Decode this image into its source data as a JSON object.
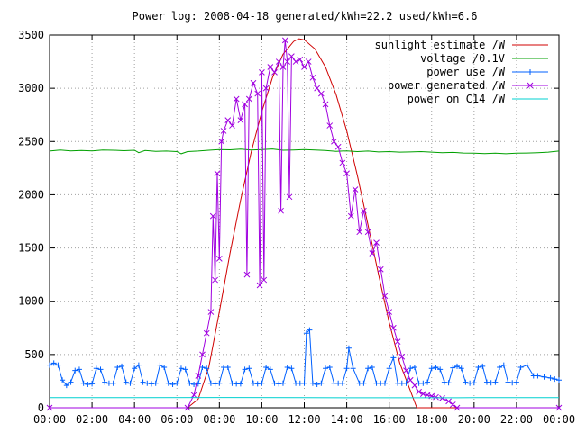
{
  "chart_data": {
    "type": "line",
    "title": "Power log: 2008-04-18 generated/kWh=22.2 used/kWh=6.6",
    "xlabel": "",
    "ylabel": "",
    "x_ticks": [
      "00:00",
      "02:00",
      "04:00",
      "06:00",
      "08:00",
      "10:00",
      "12:00",
      "14:00",
      "16:00",
      "18:00",
      "20:00",
      "22:00",
      "00:00"
    ],
    "xlim_hours": [
      0,
      24
    ],
    "ylim": [
      0,
      3500
    ],
    "y_ticks": [
      0,
      500,
      1000,
      1500,
      2000,
      2500,
      3000,
      3500
    ],
    "grid": true,
    "legend_position": "top-right",
    "series": [
      {
        "name": "sunlight estimate /W",
        "color": "#d00000",
        "style": "line",
        "points": [
          [
            0,
            0
          ],
          [
            6.5,
            0
          ],
          [
            7,
            80
          ],
          [
            7.5,
            380
          ],
          [
            8,
            900
          ],
          [
            8.5,
            1450
          ],
          [
            9,
            1950
          ],
          [
            9.5,
            2400
          ],
          [
            10,
            2780
          ],
          [
            10.5,
            3100
          ],
          [
            11,
            3320
          ],
          [
            11.5,
            3440
          ],
          [
            11.75,
            3465
          ],
          [
            12,
            3455
          ],
          [
            12.5,
            3370
          ],
          [
            13,
            3200
          ],
          [
            13.5,
            2940
          ],
          [
            14,
            2600
          ],
          [
            14.5,
            2180
          ],
          [
            15,
            1720
          ],
          [
            15.5,
            1250
          ],
          [
            16,
            800
          ],
          [
            16.5,
            420
          ],
          [
            17,
            160
          ],
          [
            17.3,
            0
          ],
          [
            24,
            0
          ]
        ]
      },
      {
        "name": "voltage /0.1V",
        "color": "#00a000",
        "style": "line",
        "points": [
          [
            0,
            2410
          ],
          [
            0.5,
            2420
          ],
          [
            1,
            2412
          ],
          [
            1.5,
            2416
          ],
          [
            2,
            2412
          ],
          [
            2.5,
            2420
          ],
          [
            3,
            2418
          ],
          [
            3.5,
            2414
          ],
          [
            4,
            2418
          ],
          [
            4.2,
            2395
          ],
          [
            4.5,
            2415
          ],
          [
            5,
            2408
          ],
          [
            5.5,
            2410
          ],
          [
            6,
            2405
          ],
          [
            6.2,
            2385
          ],
          [
            6.5,
            2405
          ],
          [
            7,
            2410
          ],
          [
            7.5,
            2418
          ],
          [
            8,
            2425
          ],
          [
            8.5,
            2422
          ],
          [
            9,
            2428
          ],
          [
            9.5,
            2420
          ],
          [
            10,
            2425
          ],
          [
            10.5,
            2430
          ],
          [
            11,
            2418
          ],
          [
            11.5,
            2420
          ],
          [
            12,
            2425
          ],
          [
            12.5,
            2420
          ],
          [
            13,
            2415
          ],
          [
            13.5,
            2408
          ],
          [
            14,
            2412
          ],
          [
            14.5,
            2405
          ],
          [
            15,
            2410
          ],
          [
            15.5,
            2402
          ],
          [
            16,
            2405
          ],
          [
            16.5,
            2400
          ],
          [
            17,
            2402
          ],
          [
            17.5,
            2405
          ],
          [
            18,
            2400
          ],
          [
            18.5,
            2395
          ],
          [
            19,
            2398
          ],
          [
            19.5,
            2392
          ],
          [
            20,
            2390
          ],
          [
            20.5,
            2386
          ],
          [
            21,
            2390
          ],
          [
            21.5,
            2385
          ],
          [
            22,
            2390
          ],
          [
            22.5,
            2392
          ],
          [
            23,
            2395
          ],
          [
            23.5,
            2400
          ],
          [
            24,
            2410
          ]
        ]
      },
      {
        "name": "power use /W",
        "color": "#0060ff",
        "style": "plus",
        "points": [
          [
            0,
            400
          ],
          [
            0.2,
            420
          ],
          [
            0.4,
            400
          ],
          [
            0.6,
            260
          ],
          [
            0.8,
            210
          ],
          [
            1,
            240
          ],
          [
            1.2,
            350
          ],
          [
            1.4,
            360
          ],
          [
            1.6,
            230
          ],
          [
            1.8,
            220
          ],
          [
            2,
            225
          ],
          [
            2.2,
            370
          ],
          [
            2.4,
            360
          ],
          [
            2.6,
            240
          ],
          [
            2.8,
            230
          ],
          [
            3,
            230
          ],
          [
            3.2,
            380
          ],
          [
            3.4,
            390
          ],
          [
            3.6,
            240
          ],
          [
            3.8,
            230
          ],
          [
            4,
            370
          ],
          [
            4.2,
            400
          ],
          [
            4.4,
            240
          ],
          [
            4.6,
            230
          ],
          [
            4.8,
            225
          ],
          [
            5,
            230
          ],
          [
            5.2,
            400
          ],
          [
            5.4,
            380
          ],
          [
            5.6,
            230
          ],
          [
            5.8,
            220
          ],
          [
            6,
            230
          ],
          [
            6.2,
            370
          ],
          [
            6.4,
            360
          ],
          [
            6.6,
            230
          ],
          [
            6.8,
            220
          ],
          [
            7,
            225
          ],
          [
            7.2,
            380
          ],
          [
            7.4,
            370
          ],
          [
            7.6,
            230
          ],
          [
            7.8,
            225
          ],
          [
            8,
            230
          ],
          [
            8.2,
            380
          ],
          [
            8.4,
            380
          ],
          [
            8.6,
            230
          ],
          [
            8.8,
            225
          ],
          [
            9,
            225
          ],
          [
            9.2,
            360
          ],
          [
            9.4,
            370
          ],
          [
            9.6,
            230
          ],
          [
            9.8,
            225
          ],
          [
            10,
            230
          ],
          [
            10.2,
            380
          ],
          [
            10.4,
            360
          ],
          [
            10.6,
            230
          ],
          [
            10.8,
            225
          ],
          [
            11,
            230
          ],
          [
            11.2,
            380
          ],
          [
            11.4,
            370
          ],
          [
            11.6,
            230
          ],
          [
            11.8,
            230
          ],
          [
            12,
            230
          ],
          [
            12.1,
            700
          ],
          [
            12.25,
            730
          ],
          [
            12.4,
            230
          ],
          [
            12.6,
            220
          ],
          [
            12.8,
            230
          ],
          [
            13,
            370
          ],
          [
            13.2,
            380
          ],
          [
            13.4,
            230
          ],
          [
            13.6,
            230
          ],
          [
            13.8,
            230
          ],
          [
            14,
            370
          ],
          [
            14.1,
            560
          ],
          [
            14.3,
            370
          ],
          [
            14.6,
            230
          ],
          [
            14.8,
            230
          ],
          [
            15,
            370
          ],
          [
            15.2,
            380
          ],
          [
            15.4,
            230
          ],
          [
            15.6,
            230
          ],
          [
            15.8,
            230
          ],
          [
            16,
            370
          ],
          [
            16.2,
            470
          ],
          [
            16.4,
            230
          ],
          [
            16.6,
            230
          ],
          [
            16.8,
            230
          ],
          [
            17,
            370
          ],
          [
            17.2,
            380
          ],
          [
            17.4,
            230
          ],
          [
            17.6,
            230
          ],
          [
            17.8,
            240
          ],
          [
            18,
            370
          ],
          [
            18.2,
            380
          ],
          [
            18.4,
            360
          ],
          [
            18.6,
            240
          ],
          [
            18.8,
            235
          ],
          [
            19,
            375
          ],
          [
            19.2,
            390
          ],
          [
            19.4,
            370
          ],
          [
            19.6,
            240
          ],
          [
            19.8,
            230
          ],
          [
            20,
            235
          ],
          [
            20.2,
            380
          ],
          [
            20.4,
            390
          ],
          [
            20.6,
            240
          ],
          [
            20.8,
            235
          ],
          [
            21,
            240
          ],
          [
            21.2,
            380
          ],
          [
            21.4,
            400
          ],
          [
            21.6,
            240
          ],
          [
            21.8,
            235
          ],
          [
            22,
            240
          ],
          [
            22.2,
            380
          ],
          [
            22.5,
            400
          ],
          [
            22.8,
            300
          ],
          [
            23,
            300
          ],
          [
            23.3,
            290
          ],
          [
            23.6,
            280
          ],
          [
            23.8,
            270
          ],
          [
            24,
            260
          ]
        ]
      },
      {
        "name": "power generated /W",
        "color": "#a000e0",
        "style": "cross",
        "points": [
          [
            0,
            0
          ],
          [
            6.5,
            0
          ],
          [
            6.8,
            120
          ],
          [
            7,
            300
          ],
          [
            7.2,
            500
          ],
          [
            7.4,
            700
          ],
          [
            7.6,
            900
          ],
          [
            7.7,
            1800
          ],
          [
            7.8,
            1200
          ],
          [
            7.9,
            2200
          ],
          [
            8,
            1400
          ],
          [
            8.1,
            2500
          ],
          [
            8.2,
            2600
          ],
          [
            8.4,
            2700
          ],
          [
            8.6,
            2650
          ],
          [
            8.8,
            2900
          ],
          [
            9,
            2700
          ],
          [
            9.2,
            2850
          ],
          [
            9.3,
            1250
          ],
          [
            9.4,
            2900
          ],
          [
            9.6,
            3050
          ],
          [
            9.8,
            2950
          ],
          [
            9.9,
            1150
          ],
          [
            10,
            3150
          ],
          [
            10.1,
            1200
          ],
          [
            10.2,
            3000
          ],
          [
            10.4,
            3200
          ],
          [
            10.6,
            3150
          ],
          [
            10.8,
            3250
          ],
          [
            10.9,
            1850
          ],
          [
            11,
            3200
          ],
          [
            11.1,
            3450
          ],
          [
            11.2,
            3250
          ],
          [
            11.3,
            1980
          ],
          [
            11.4,
            3300
          ],
          [
            11.6,
            3250
          ],
          [
            11.8,
            3270
          ],
          [
            12,
            3200
          ],
          [
            12.2,
            3250
          ],
          [
            12.4,
            3100
          ],
          [
            12.6,
            3000
          ],
          [
            12.8,
            2950
          ],
          [
            13,
            2850
          ],
          [
            13.2,
            2650
          ],
          [
            13.4,
            2500
          ],
          [
            13.6,
            2450
          ],
          [
            13.8,
            2300
          ],
          [
            14,
            2200
          ],
          [
            14.2,
            1800
          ],
          [
            14.4,
            2050
          ],
          [
            14.6,
            1650
          ],
          [
            14.8,
            1850
          ],
          [
            15,
            1650
          ],
          [
            15.2,
            1450
          ],
          [
            15.4,
            1550
          ],
          [
            15.6,
            1300
          ],
          [
            15.8,
            1050
          ],
          [
            16,
            900
          ],
          [
            16.2,
            750
          ],
          [
            16.4,
            620
          ],
          [
            16.6,
            480
          ],
          [
            16.8,
            350
          ],
          [
            17,
            260
          ],
          [
            17.2,
            210
          ],
          [
            17.4,
            150
          ],
          [
            17.6,
            130
          ],
          [
            17.8,
            120
          ],
          [
            18,
            110
          ],
          [
            18.2,
            100
          ],
          [
            18.5,
            90
          ],
          [
            18.8,
            60
          ],
          [
            19,
            30
          ],
          [
            19.2,
            0
          ],
          [
            24,
            0
          ]
        ]
      },
      {
        "name": "power on C14 /W",
        "color": "#00d0d0",
        "style": "line",
        "points": [
          [
            0,
            95
          ],
          [
            4,
            95
          ],
          [
            8,
            96
          ],
          [
            12,
            95
          ],
          [
            16,
            94
          ],
          [
            20,
            95
          ],
          [
            24,
            95
          ]
        ]
      }
    ]
  }
}
